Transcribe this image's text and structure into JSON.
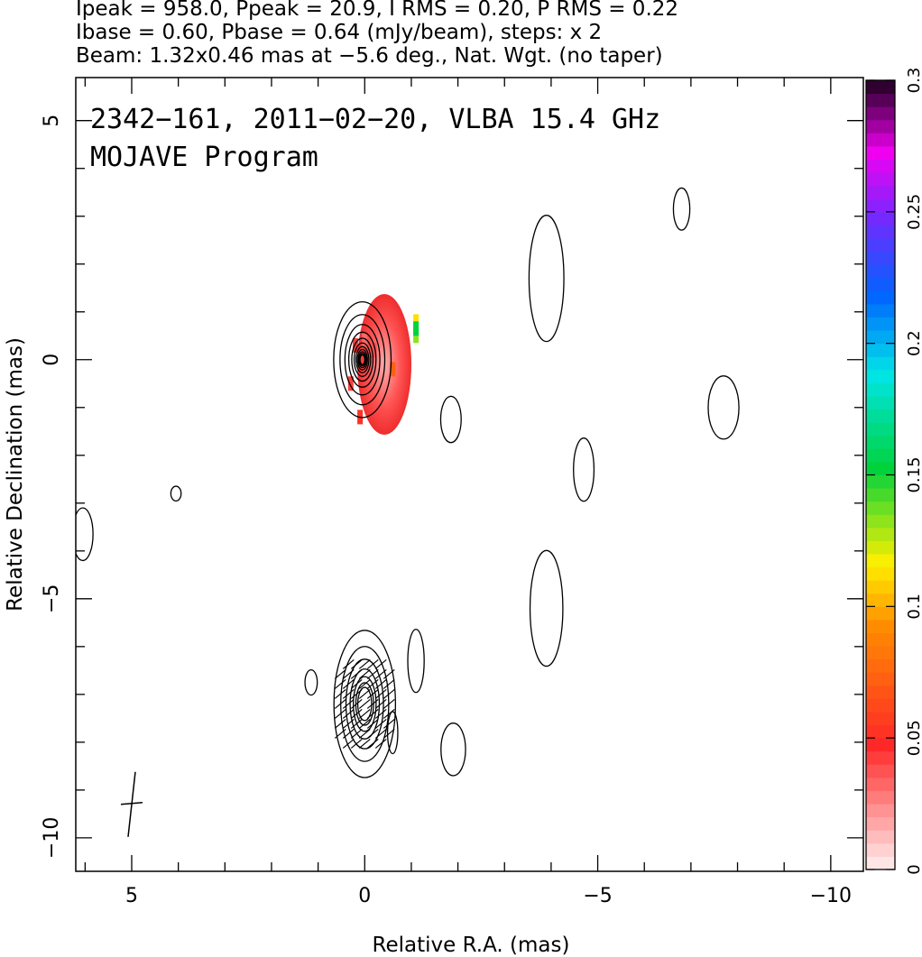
{
  "header": {
    "line1": "Ipeak = 958.0, Ppeak = 20.9, I RMS = 0.20, P RMS = 0.22",
    "line2": "Ibase = 0.60, Pbase = 0.64 (mJy/beam), steps: x 2",
    "line3": "Beam: 1.32x0.46 mas at −5.6 deg., Nat. Wgt. (no taper)"
  },
  "chart_data": {
    "type": "heatmap",
    "title": "2342−161, 2011−02−20, VLBA 15.4 GHz",
    "subtitle": "MOJAVE Program",
    "xlabel": "Relative R.A. (mas)",
    "ylabel": "Relative Declination (mas)",
    "xlim": [
      6.2,
      -10.7
    ],
    "ylim": [
      -10.7,
      5.9
    ],
    "x_ticks": [
      5,
      0,
      -5,
      -10
    ],
    "x_tick_labels": [
      "5",
      "0",
      "−5",
      "−10"
    ],
    "y_ticks": [
      5,
      0,
      -5,
      -10
    ],
    "y_tick_labels": [
      "5",
      "0",
      "−5",
      "−10"
    ],
    "colorbar": {
      "range": [
        0,
        0.3
      ],
      "ticks": [
        0,
        0.05,
        0.1,
        0.15,
        0.2,
        0.25,
        0.3
      ],
      "tick_labels": [
        "0",
        "0.05",
        "0.1",
        "0.15",
        "0.2",
        "0.25",
        "0.3"
      ]
    },
    "contour_components": [
      {
        "name": "core",
        "x": 0.05,
        "y": 0.0,
        "sx": 0.28,
        "sy": 0.55,
        "levels": 11
      },
      {
        "name": "south",
        "x": 0.0,
        "y": -7.2,
        "sx": 0.3,
        "sy": 0.7,
        "levels": 7
      },
      {
        "name": "noise-1",
        "x": -3.9,
        "y": 1.7,
        "sx": 0.17,
        "sy": 0.6,
        "levels": 1
      },
      {
        "name": "noise-2",
        "x": -6.8,
        "y": 3.15,
        "sx": 0.08,
        "sy": 0.2,
        "levels": 1
      },
      {
        "name": "noise-3",
        "x": -7.7,
        "y": -1.0,
        "sx": 0.15,
        "sy": 0.3,
        "levels": 1
      },
      {
        "name": "noise-4",
        "x": -1.85,
        "y": -1.25,
        "sx": 0.1,
        "sy": 0.22,
        "levels": 1
      },
      {
        "name": "noise-5",
        "x": -4.7,
        "y": -2.3,
        "sx": 0.1,
        "sy": 0.3,
        "levels": 1
      },
      {
        "name": "noise-6",
        "x": -3.9,
        "y": -5.2,
        "sx": 0.16,
        "sy": 0.55,
        "levels": 1
      },
      {
        "name": "noise-7",
        "x": -1.9,
        "y": -8.15,
        "sx": 0.12,
        "sy": 0.25,
        "levels": 1
      },
      {
        "name": "noise-8",
        "x": 6.05,
        "y": -3.65,
        "sx": 0.1,
        "sy": 0.25,
        "levels": 1
      },
      {
        "name": "noise-9",
        "x": 4.05,
        "y": -2.8,
        "sx": 0.05,
        "sy": 0.07,
        "levels": 1
      },
      {
        "name": "noise-10",
        "x": 1.15,
        "y": -6.75,
        "sx": 0.06,
        "sy": 0.12,
        "levels": 1
      },
      {
        "name": "noise-11",
        "x": -1.1,
        "y": -6.3,
        "sx": 0.08,
        "sy": 0.3,
        "levels": 1
      },
      {
        "name": "noise-12",
        "x": -0.6,
        "y": -7.8,
        "sx": 0.05,
        "sy": 0.2,
        "levels": 1
      }
    ],
    "polarization_pixels": [
      {
        "x": 0.2,
        "y": 0.3,
        "v": 0.04
      },
      {
        "x": 0.0,
        "y": 0.4,
        "v": 0.03
      },
      {
        "x": -0.2,
        "y": 0.2,
        "v": 0.035
      },
      {
        "x": 0.3,
        "y": -0.5,
        "v": 0.04
      },
      {
        "x": 0.1,
        "y": -1.2,
        "v": 0.05
      },
      {
        "x": -0.6,
        "y": -0.2,
        "v": 0.07
      },
      {
        "x": -1.1,
        "y": 0.8,
        "v": 0.11
      },
      {
        "x": -1.1,
        "y": 0.5,
        "v": 0.13
      },
      {
        "x": -1.1,
        "y": 0.65,
        "v": 0.15
      }
    ]
  }
}
